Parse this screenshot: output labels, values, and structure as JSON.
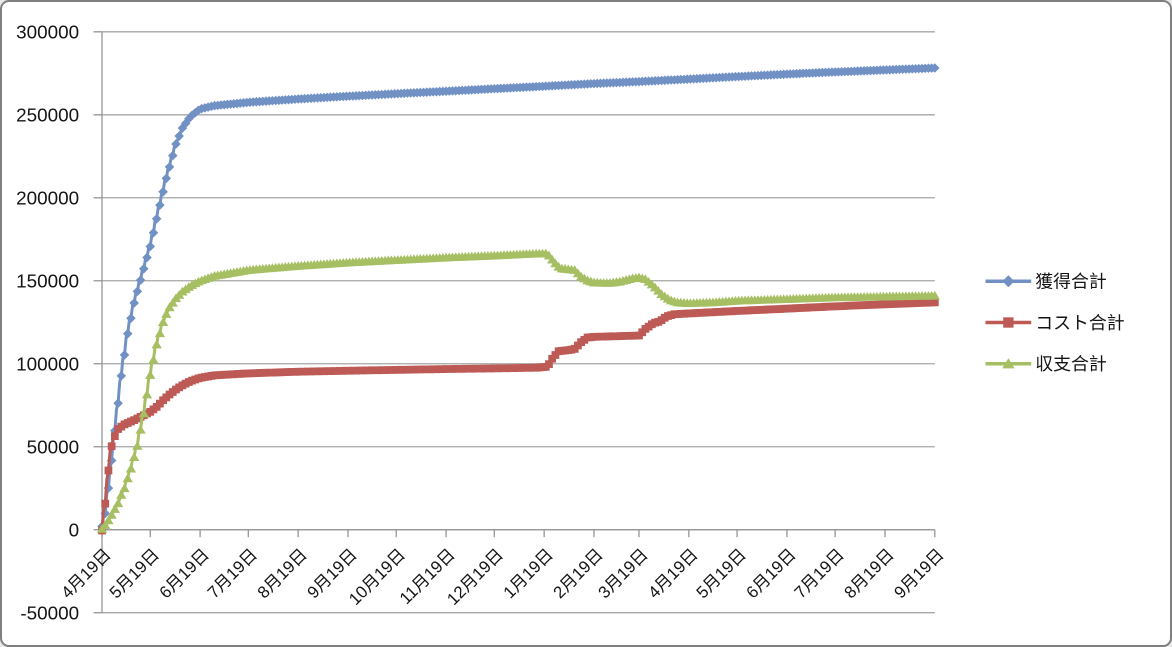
{
  "chart_data": {
    "type": "line",
    "legend_position": "right",
    "grid": true,
    "x_axis": {
      "labels": [
        "4月19日",
        "5月19日",
        "6月19日",
        "7月19日",
        "8月19日",
        "9月19日",
        "10月19日",
        "11月19日",
        "12月19日",
        "1月19日",
        "2月19日",
        "3月19日",
        "4月19日",
        "5月19日",
        "6月19日",
        "7月19日",
        "8月19日",
        "9月19日"
      ],
      "label_days": [
        0,
        30,
        61,
        91,
        122,
        153,
        183,
        214,
        244,
        275,
        306,
        334,
        365,
        395,
        426,
        456,
        487,
        518
      ],
      "total_days": 518
    },
    "y_axis": {
      "min": -50000,
      "max": 300000,
      "step": 50000,
      "tick_labels": [
        "-50000",
        "0",
        "50000",
        "100000",
        "150000",
        "200000",
        "250000",
        "300000"
      ]
    },
    "series": [
      {
        "name": "獲得合計",
        "color": "#7191c5",
        "marker": "diamond",
        "points_day_value": [
          [
            0,
            2000
          ],
          [
            2,
            12000
          ],
          [
            5,
            35000
          ],
          [
            8,
            62000
          ],
          [
            12,
            95000
          ],
          [
            16,
            120000
          ],
          [
            20,
            138000
          ],
          [
            25,
            155000
          ],
          [
            30,
            172000
          ],
          [
            35,
            193000
          ],
          [
            40,
            213000
          ],
          [
            45,
            230000
          ],
          [
            50,
            242000
          ],
          [
            55,
            249000
          ],
          [
            61,
            253500
          ],
          [
            70,
            255500
          ],
          [
            91,
            257500
          ],
          [
            122,
            259500
          ],
          [
            153,
            261200
          ],
          [
            183,
            262700
          ],
          [
            214,
            264200
          ],
          [
            244,
            265700
          ],
          [
            275,
            267200
          ],
          [
            306,
            268800
          ],
          [
            334,
            270000
          ],
          [
            365,
            271500
          ],
          [
            395,
            273000
          ],
          [
            426,
            274500
          ],
          [
            456,
            275800
          ],
          [
            487,
            277000
          ],
          [
            518,
            278200
          ]
        ]
      },
      {
        "name": "コスト合計",
        "color": "#bd5a55",
        "marker": "square",
        "points_day_value": [
          [
            0,
            1000
          ],
          [
            2,
            18000
          ],
          [
            4,
            38000
          ],
          [
            6,
            52000
          ],
          [
            9,
            60000
          ],
          [
            14,
            63500
          ],
          [
            20,
            66000
          ],
          [
            25,
            68500
          ],
          [
            30,
            71000
          ],
          [
            34,
            74000
          ],
          [
            38,
            78000
          ],
          [
            42,
            81500
          ],
          [
            46,
            84500
          ],
          [
            50,
            87000
          ],
          [
            55,
            89500
          ],
          [
            61,
            91500
          ],
          [
            70,
            93000
          ],
          [
            91,
            94200
          ],
          [
            122,
            95200
          ],
          [
            153,
            95800
          ],
          [
            183,
            96300
          ],
          [
            214,
            96800
          ],
          [
            244,
            97200
          ],
          [
            270,
            97600
          ],
          [
            277,
            98200
          ],
          [
            280,
            103000
          ],
          [
            284,
            107500
          ],
          [
            291,
            108300
          ],
          [
            294,
            109000
          ],
          [
            298,
            113000
          ],
          [
            302,
            115800
          ],
          [
            306,
            116200
          ],
          [
            320,
            116600
          ],
          [
            334,
            117000
          ],
          [
            338,
            121000
          ],
          [
            343,
            124500
          ],
          [
            347,
            125500
          ],
          [
            351,
            128500
          ],
          [
            356,
            129800
          ],
          [
            365,
            130300
          ],
          [
            395,
            131800
          ],
          [
            426,
            133200
          ],
          [
            456,
            134600
          ],
          [
            487,
            135800
          ],
          [
            518,
            137000
          ]
        ]
      },
      {
        "name": "収支合計",
        "color": "#a6bf62",
        "marker": "triangle",
        "points_day_value": [
          [
            0,
            500
          ],
          [
            3,
            4000
          ],
          [
            6,
            9000
          ],
          [
            10,
            16000
          ],
          [
            14,
            26000
          ],
          [
            18,
            38000
          ],
          [
            22,
            52000
          ],
          [
            26,
            72000
          ],
          [
            30,
            95000
          ],
          [
            34,
            113000
          ],
          [
            38,
            126000
          ],
          [
            42,
            134000
          ],
          [
            46,
            139500
          ],
          [
            50,
            143500
          ],
          [
            55,
            147000
          ],
          [
            61,
            150000
          ],
          [
            70,
            153000
          ],
          [
            91,
            156500
          ],
          [
            122,
            159000
          ],
          [
            153,
            161000
          ],
          [
            183,
            162500
          ],
          [
            214,
            164000
          ],
          [
            244,
            165200
          ],
          [
            265,
            166200
          ],
          [
            277,
            166500
          ],
          [
            281,
            161500
          ],
          [
            285,
            157500
          ],
          [
            294,
            156500
          ],
          [
            298,
            152500
          ],
          [
            302,
            150200
          ],
          [
            306,
            149000
          ],
          [
            315,
            148600
          ],
          [
            322,
            149500
          ],
          [
            330,
            151500
          ],
          [
            334,
            152000
          ],
          [
            338,
            151000
          ],
          [
            343,
            147000
          ],
          [
            348,
            142000
          ],
          [
            353,
            138500
          ],
          [
            358,
            137000
          ],
          [
            365,
            136500
          ],
          [
            380,
            137000
          ],
          [
            395,
            138000
          ],
          [
            426,
            139000
          ],
          [
            456,
            140000
          ],
          [
            487,
            140500
          ],
          [
            518,
            141000
          ]
        ]
      }
    ]
  },
  "colors": {
    "grid": "#a6a6a6",
    "axis": "#969696",
    "text": "#141414",
    "frame_border": "#7f7f7f",
    "background": "#ffffff"
  }
}
